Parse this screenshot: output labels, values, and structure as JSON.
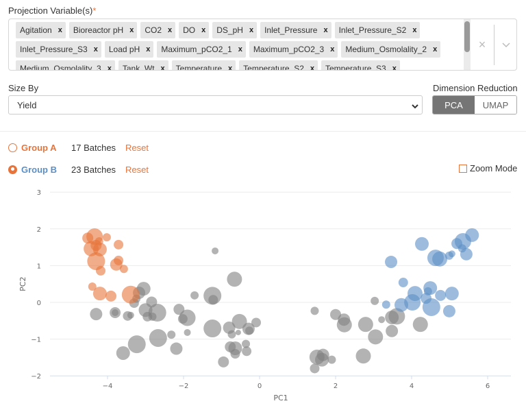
{
  "projection": {
    "label": "Projection Variable(s)",
    "required_mark": "*",
    "rows": [
      [
        "Agitation",
        "Bioreactor pH",
        "CO2",
        "DO",
        "DS_pH",
        "Inlet_Pressure",
        "Inlet_Pressure_S2"
      ],
      [
        "Inlet_Pressure_S3",
        "Load pH",
        "Maximum_pCO2_1",
        "Maximum_pCO2_3",
        "Medium_Osmolality_2"
      ],
      [
        "Medium_Osmolality_3",
        "Tank_Wt",
        "Temperature",
        "Temperature_S2",
        "Temperature_S3"
      ]
    ],
    "remove_glyph": "x",
    "clear_glyph": "×"
  },
  "size_by": {
    "label": "Size By",
    "value": "Yield"
  },
  "dimension_reduction": {
    "label": "Dimension Reduction",
    "options": [
      "PCA",
      "UMAP"
    ],
    "selected": "PCA"
  },
  "groups": [
    {
      "name": "Group A",
      "count": "17 Batches",
      "reset": "Reset",
      "color": "#e8743b",
      "selected": false
    },
    {
      "name": "Group B",
      "count": "23 Batches",
      "reset": "Reset",
      "color": "#5b8fc7",
      "selected": true
    }
  ],
  "zoom_mode": {
    "label": "Zoom Mode",
    "checked": false
  },
  "colors": {
    "group_a": "#e8743b",
    "group_b": "#5b8fc7",
    "unassigned": "#808080",
    "accent": "#e8743b"
  },
  "chart_data": {
    "type": "scatter",
    "title": "",
    "xlabel": "PC1",
    "ylabel": "PC2",
    "xlim": [
      -5.5,
      6.6
    ],
    "ylim": [
      -2,
      3
    ],
    "xticks": [
      -4,
      -2,
      0,
      2,
      4,
      6
    ],
    "yticks": [
      -2,
      -1,
      0,
      1,
      2,
      3
    ],
    "grid": "horizontal",
    "size_by": "Yield",
    "series": [
      {
        "name": "Group A",
        "color": "#e8743b",
        "points": [
          {
            "x": -4.52,
            "y": 1.75,
            "r": 8
          },
          {
            "x": -4.34,
            "y": 1.79,
            "r": 12
          },
          {
            "x": -4.43,
            "y": 1.46,
            "r": 11
          },
          {
            "x": -4.3,
            "y": 1.55,
            "r": 8
          },
          {
            "x": -4.2,
            "y": 1.44,
            "r": 10
          },
          {
            "x": -3.71,
            "y": 1.57,
            "r": 7
          },
          {
            "x": -4.3,
            "y": 1.12,
            "r": 13
          },
          {
            "x": -4.18,
            "y": 0.86,
            "r": 7
          },
          {
            "x": -3.77,
            "y": 1.03,
            "r": 9
          },
          {
            "x": -3.71,
            "y": 1.14,
            "r": 7
          },
          {
            "x": -3.57,
            "y": 0.91,
            "r": 6
          },
          {
            "x": -4.4,
            "y": 0.43,
            "r": 6
          },
          {
            "x": -4.2,
            "y": 0.24,
            "r": 10
          },
          {
            "x": -3.91,
            "y": 0.17,
            "r": 8
          },
          {
            "x": -3.39,
            "y": 0.21,
            "r": 13
          },
          {
            "x": -4.02,
            "y": 1.77,
            "r": 6
          },
          {
            "x": -4.22,
            "y": 1.66,
            "r": 6
          }
        ]
      },
      {
        "name": "Group B",
        "color": "#5b8fc7",
        "points": [
          {
            "x": 5.59,
            "y": 1.83,
            "r": 10
          },
          {
            "x": 5.35,
            "y": 1.66,
            "r": 12
          },
          {
            "x": 5.19,
            "y": 1.6,
            "r": 8
          },
          {
            "x": 4.27,
            "y": 1.59,
            "r": 10
          },
          {
            "x": 5.44,
            "y": 1.31,
            "r": 9
          },
          {
            "x": 4.63,
            "y": 1.21,
            "r": 12
          },
          {
            "x": 4.74,
            "y": 1.18,
            "r": 11
          },
          {
            "x": 4.99,
            "y": 1.27,
            "r": 6
          },
          {
            "x": 3.46,
            "y": 1.1,
            "r": 9
          },
          {
            "x": 3.78,
            "y": 0.54,
            "r": 7
          },
          {
            "x": 4.09,
            "y": 0.24,
            "r": 11
          },
          {
            "x": 4.49,
            "y": 0.39,
            "r": 10
          },
          {
            "x": 4.76,
            "y": 0.19,
            "r": 8
          },
          {
            "x": 5.06,
            "y": 0.24,
            "r": 10
          },
          {
            "x": 4.02,
            "y": 0.0,
            "r": 12
          },
          {
            "x": 4.38,
            "y": 0.11,
            "r": 8
          },
          {
            "x": 4.52,
            "y": -0.13,
            "r": 13
          },
          {
            "x": 4.99,
            "y": -0.24,
            "r": 9
          },
          {
            "x": 3.73,
            "y": -0.07,
            "r": 10
          },
          {
            "x": 3.33,
            "y": -0.06,
            "r": 6
          },
          {
            "x": 4.43,
            "y": 0.3,
            "r": 6
          },
          {
            "x": 5.33,
            "y": 1.47,
            "r": 6
          },
          {
            "x": 5.06,
            "y": 1.32,
            "r": 5
          }
        ]
      },
      {
        "name": "Unassigned",
        "color": "#808080",
        "points": [
          {
            "x": -3.05,
            "y": 0.37,
            "r": 10
          },
          {
            "x": -3.17,
            "y": 0.26,
            "r": 9
          },
          {
            "x": -3.3,
            "y": -0.02,
            "r": 7
          },
          {
            "x": -3.24,
            "y": 0.1,
            "r": 6
          },
          {
            "x": -2.84,
            "y": 0.01,
            "r": 8
          },
          {
            "x": -3.0,
            "y": -0.21,
            "r": 10
          },
          {
            "x": -2.69,
            "y": -0.28,
            "r": 13
          },
          {
            "x": -2.95,
            "y": -0.39,
            "r": 7
          },
          {
            "x": -2.82,
            "y": -0.39,
            "r": 6
          },
          {
            "x": -4.3,
            "y": -0.32,
            "r": 9
          },
          {
            "x": -3.8,
            "y": -0.28,
            "r": 8
          },
          {
            "x": -3.47,
            "y": -0.37,
            "r": 7
          },
          {
            "x": -3.39,
            "y": -0.35,
            "r": 5
          },
          {
            "x": -2.67,
            "y": -0.97,
            "r": 13
          },
          {
            "x": -3.23,
            "y": -1.14,
            "r": 13
          },
          {
            "x": -3.59,
            "y": -1.38,
            "r": 10
          },
          {
            "x": -2.32,
            "y": -0.88,
            "r": 6
          },
          {
            "x": -2.19,
            "y": -1.26,
            "r": 9
          },
          {
            "x": -2.12,
            "y": -0.19,
            "r": 8
          },
          {
            "x": -2.02,
            "y": -0.45,
            "r": 7
          },
          {
            "x": -1.9,
            "y": -0.42,
            "r": 12
          },
          {
            "x": -1.9,
            "y": -0.82,
            "r": 5
          },
          {
            "x": -1.71,
            "y": 0.19,
            "r": 6
          },
          {
            "x": -1.24,
            "y": 0.18,
            "r": 13
          },
          {
            "x": -1.22,
            "y": 0.07,
            "r": 7
          },
          {
            "x": -1.17,
            "y": 1.4,
            "r": 5
          },
          {
            "x": -0.66,
            "y": 0.63,
            "r": 11
          },
          {
            "x": -1.24,
            "y": -0.71,
            "r": 13
          },
          {
            "x": -0.8,
            "y": -0.69,
            "r": 9
          },
          {
            "x": -0.53,
            "y": -0.52,
            "r": 11
          },
          {
            "x": -0.73,
            "y": -0.87,
            "r": 6
          },
          {
            "x": -0.56,
            "y": -0.82,
            "r": 4
          },
          {
            "x": -0.29,
            "y": -0.72,
            "r": 9
          },
          {
            "x": -0.09,
            "y": -0.55,
            "r": 7
          },
          {
            "x": -0.27,
            "y": -0.77,
            "r": 6
          },
          {
            "x": -0.77,
            "y": -1.21,
            "r": 8
          },
          {
            "x": -0.64,
            "y": -1.25,
            "r": 10
          },
          {
            "x": -0.36,
            "y": -1.13,
            "r": 6
          },
          {
            "x": -0.34,
            "y": -1.33,
            "r": 7
          },
          {
            "x": -0.64,
            "y": -1.4,
            "r": 7
          },
          {
            "x": -0.95,
            "y": -1.62,
            "r": 8
          },
          {
            "x": 1.51,
            "y": -1.49,
            "r": 11
          },
          {
            "x": 1.67,
            "y": -1.43,
            "r": 9
          },
          {
            "x": 1.64,
            "y": -1.56,
            "r": 10
          },
          {
            "x": 1.9,
            "y": -1.56,
            "r": 6
          },
          {
            "x": 1.45,
            "y": -1.8,
            "r": 7
          },
          {
            "x": 2.73,
            "y": -1.46,
            "r": 11
          },
          {
            "x": 1.45,
            "y": -0.23,
            "r": 6
          },
          {
            "x": 2.0,
            "y": -0.33,
            "r": 8
          },
          {
            "x": 2.22,
            "y": -0.47,
            "r": 9
          },
          {
            "x": 2.23,
            "y": -0.61,
            "r": 11
          },
          {
            "x": 2.79,
            "y": -0.6,
            "r": 11
          },
          {
            "x": 3.05,
            "y": -0.94,
            "r": 11
          },
          {
            "x": 3.03,
            "y": 0.04,
            "r": 6
          },
          {
            "x": 3.21,
            "y": -0.47,
            "r": 5
          },
          {
            "x": 3.48,
            "y": -0.41,
            "r": 10
          },
          {
            "x": 3.61,
            "y": -0.38,
            "r": 12
          },
          {
            "x": 3.48,
            "y": -0.78,
            "r": 9
          },
          {
            "x": 4.23,
            "y": -0.6,
            "r": 11
          },
          {
            "x": -3.8,
            "y": -0.28,
            "r": 5
          }
        ]
      }
    ]
  }
}
